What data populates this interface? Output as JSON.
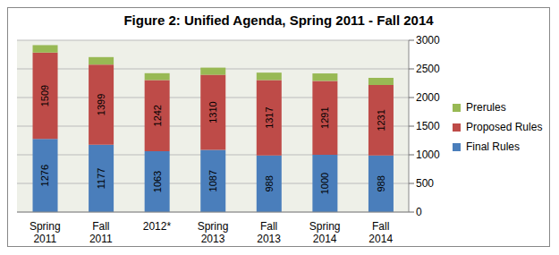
{
  "chart_data": {
    "type": "bar",
    "title": "Figure 2: Unified Agenda, Spring 2011 - Fall 2014",
    "categories": [
      "Spring 2011",
      "Fall 2011",
      "2012*",
      "Spring 2013",
      "Fall 2013",
      "Spring 2014",
      "Fall 2014"
    ],
    "series": [
      {
        "name": "Final Rules",
        "color": "#4a7ebb",
        "values": [
          1276,
          1177,
          1063,
          1087,
          988,
          1000,
          988
        ],
        "data_labels": true
      },
      {
        "name": "Proposed Rules",
        "color": "#be4b48",
        "values": [
          1509,
          1399,
          1242,
          1310,
          1317,
          1291,
          1231
        ],
        "data_labels": true
      },
      {
        "name": "Prerules",
        "color": "#98b954",
        "values": [
          130,
          130,
          120,
          125,
          130,
          130,
          125
        ],
        "data_labels": false
      }
    ],
    "stacked": true,
    "ylim": [
      0,
      3000
    ],
    "yticks": [
      0,
      500,
      1000,
      1500,
      2000,
      2500,
      3000
    ],
    "grid": true,
    "legend": "right"
  }
}
